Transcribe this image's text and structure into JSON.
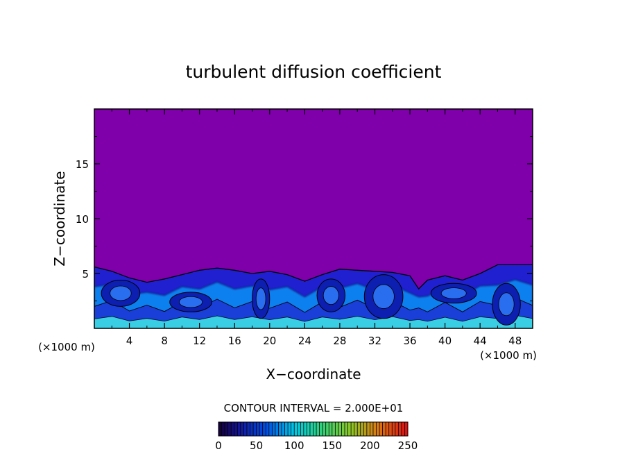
{
  "chart_data": {
    "type": "heatmap",
    "title": "turbulent diffusion coefficient",
    "xlabel": "X−coordinate",
    "ylabel": "Z−coordinate",
    "x_unit_left": "(×1000 m)",
    "x_unit_right": "(×1000 m)",
    "xlim": [
      0,
      50
    ],
    "ylim": [
      0,
      20
    ],
    "x_ticks": [
      "4",
      "8",
      "12",
      "16",
      "20",
      "24",
      "28",
      "32",
      "36",
      "40",
      "44",
      "48"
    ],
    "y_ticks": [
      "5",
      "10",
      "15"
    ],
    "contour_interval_label": "CONTOUR INTERVAL = 2.000E+01",
    "colorbar": {
      "min": 0,
      "max": 250,
      "tick_labels": [
        "0",
        "50",
        "100",
        "150",
        "200",
        "250"
      ]
    },
    "background_value": 0,
    "boundary_layer_top_profile": [
      [
        0,
        5.6
      ],
      [
        2,
        5.2
      ],
      [
        4,
        4.6
      ],
      [
        6,
        4.2
      ],
      [
        8,
        4.5
      ],
      [
        10,
        4.9
      ],
      [
        12,
        5.3
      ],
      [
        14,
        5.5
      ],
      [
        16,
        5.3
      ],
      [
        18,
        5.0
      ],
      [
        20,
        5.2
      ],
      [
        22,
        4.9
      ],
      [
        24,
        4.3
      ],
      [
        26,
        4.9
      ],
      [
        28,
        5.4
      ],
      [
        30,
        5.3
      ],
      [
        32,
        5.2
      ],
      [
        34,
        5.1
      ],
      [
        36,
        4.8
      ],
      [
        37,
        3.6
      ],
      [
        38,
        4.4
      ],
      [
        40,
        4.8
      ],
      [
        42,
        4.4
      ],
      [
        44,
        5.0
      ],
      [
        46,
        5.8
      ],
      [
        48,
        5.8
      ],
      [
        50,
        5.8
      ]
    ],
    "colors": {
      "background": "#7f00aa",
      "low": "#2020d0",
      "mid": "#1080f0",
      "high": "#40e8e8"
    }
  }
}
